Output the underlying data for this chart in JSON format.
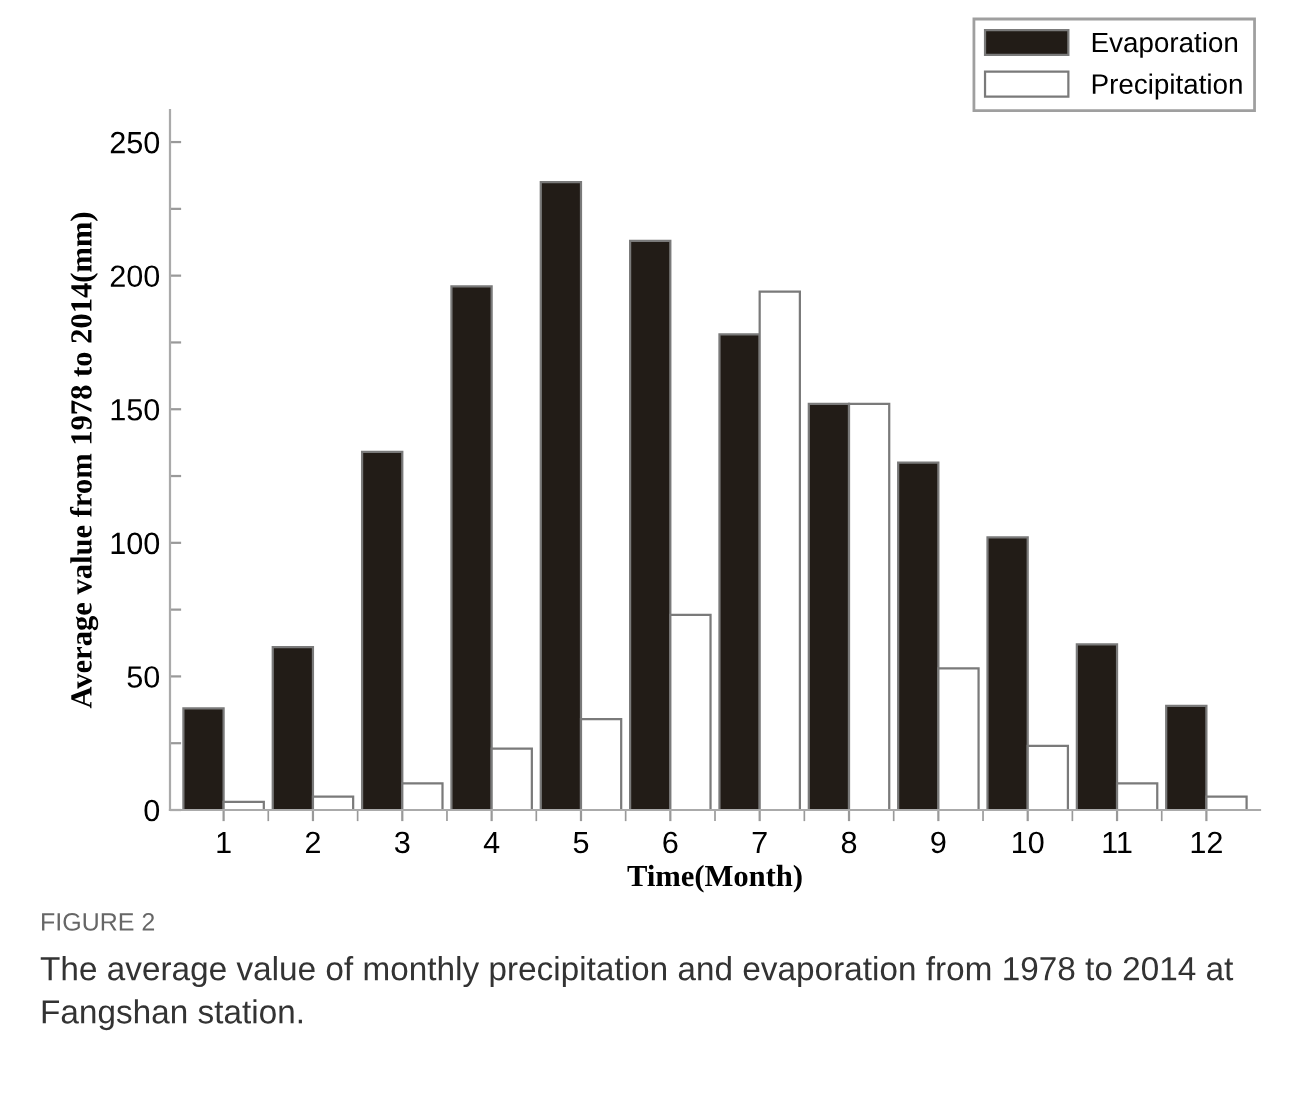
{
  "chart_data": {
    "type": "bar",
    "xlabel": "Time(Month)",
    "ylabel": "Average value from 1978 to 2014(mm)",
    "categories": [
      "1",
      "2",
      "3",
      "4",
      "5",
      "6",
      "7",
      "8",
      "9",
      "10",
      "11",
      "12"
    ],
    "series": [
      {
        "name": "Evaporation",
        "color": "#221c17",
        "values": [
          38,
          61,
          134,
          196,
          235,
          213,
          178,
          152,
          130,
          102,
          62,
          39
        ]
      },
      {
        "name": "Precipitation",
        "color": "#ffffff",
        "values": [
          3,
          5,
          10,
          23,
          34,
          73,
          194,
          152,
          53,
          24,
          10,
          5
        ]
      }
    ],
    "ylim": [
      0,
      262
    ],
    "yticks": [
      0,
      {
        "value": 25,
        "label": null
      },
      50,
      {
        "value": 75,
        "label": null
      },
      100,
      {
        "value": 125,
        "label": null
      },
      150,
      {
        "value": 175,
        "label": null
      },
      200,
      {
        "value": 225,
        "label": null
      },
      250
    ],
    "legend": "top right",
    "grid": false,
    "annotations": [
      "FIGURE 2",
      "The average value of monthly precipitation and evaporation from 1978 to 2014 at Fangshan station."
    ]
  }
}
